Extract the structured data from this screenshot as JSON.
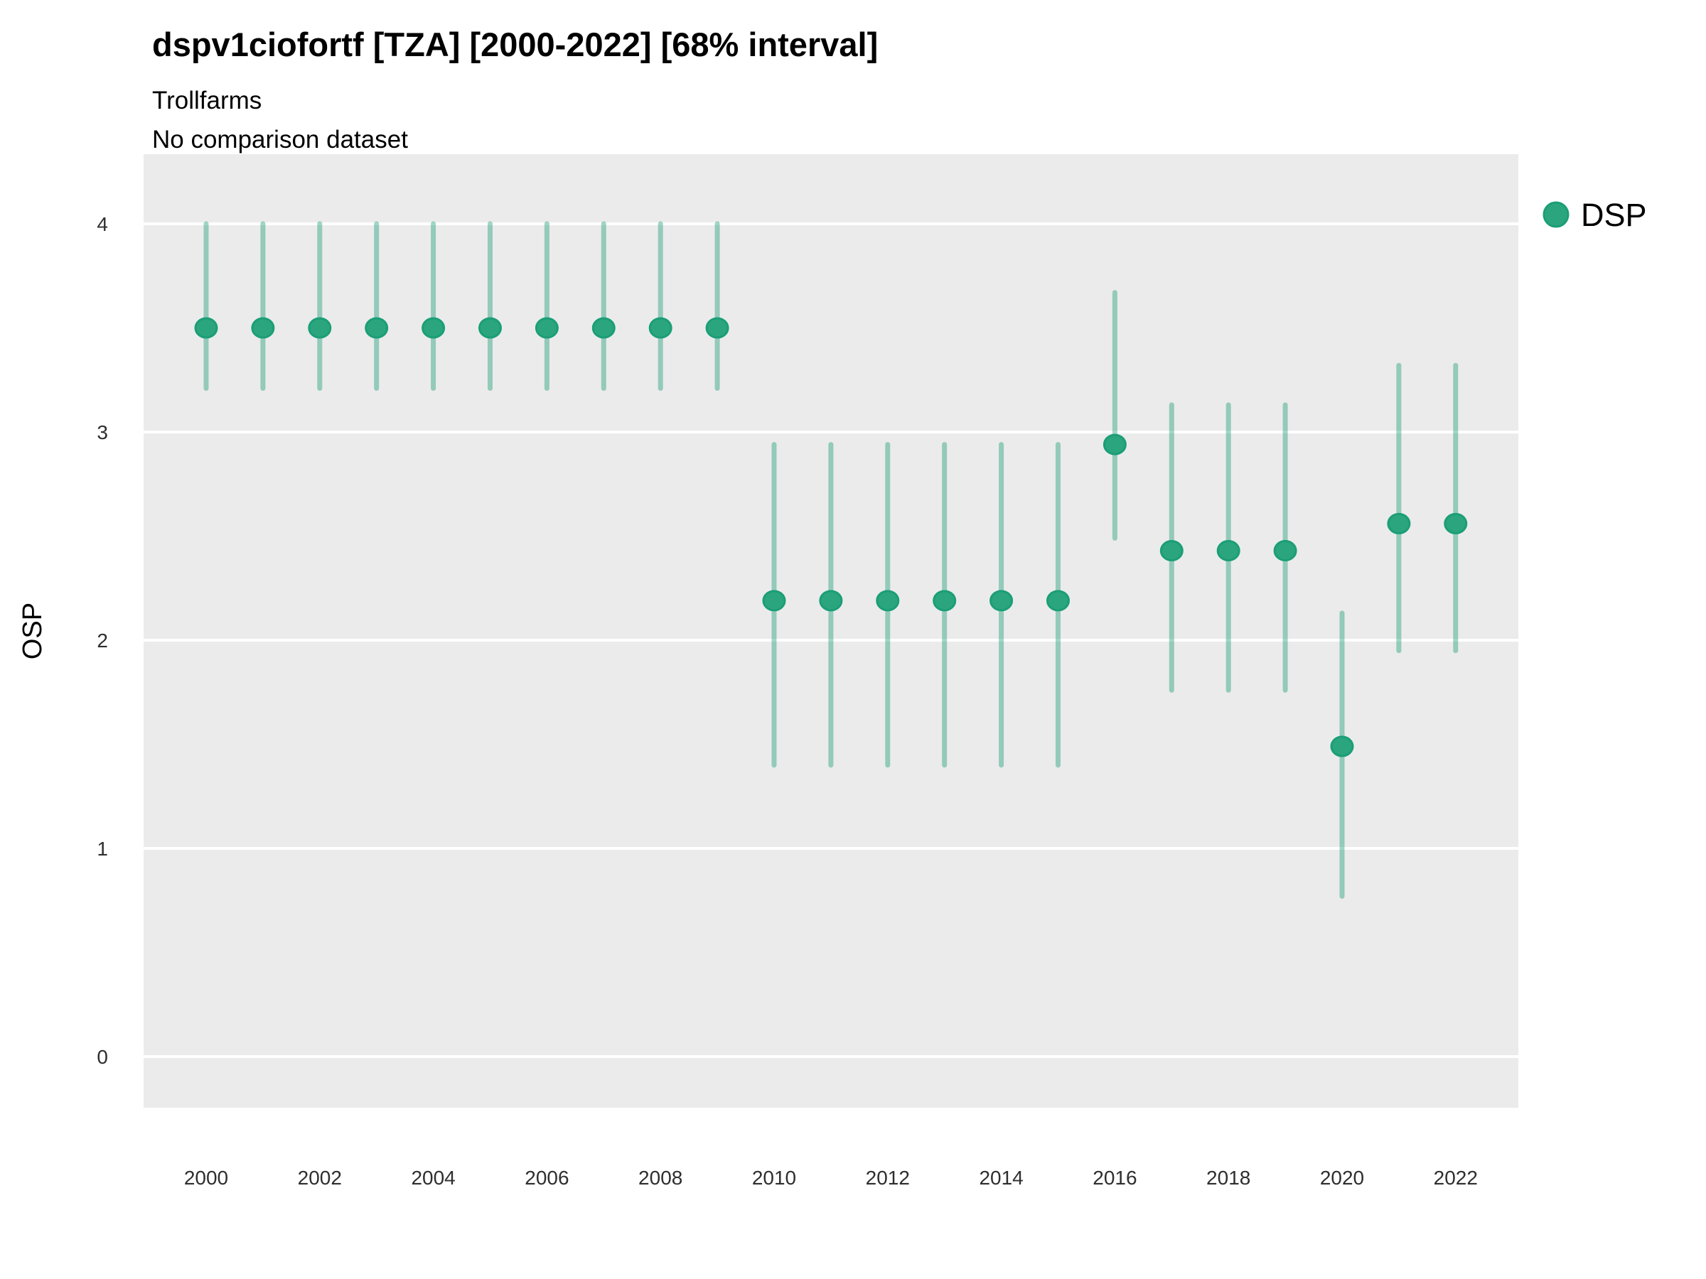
{
  "header": {
    "title": "dspv1ciofortf [TZA] [2000-2022] [68% interval]",
    "subtitle_line1": "Trollfarms",
    "subtitle_line2": "No comparison dataset"
  },
  "axes": {
    "y_label": "OSP",
    "y_ticks": [
      0,
      1,
      2,
      3,
      4
    ],
    "x_ticks": [
      2000,
      2002,
      2004,
      2006,
      2008,
      2010,
      2012,
      2014,
      2016,
      2018,
      2020,
      2022
    ]
  },
  "legend": {
    "items": [
      {
        "label": "DSP",
        "marker": "point-icon",
        "color": "#2ba57d"
      }
    ]
  },
  "chart_data": {
    "type": "scatter",
    "subtype": "pointrange",
    "title": "dspv1ciofortf [TZA] [2000-2022] [68% interval]",
    "subtitle": [
      "Trollfarms",
      "No comparison dataset"
    ],
    "interval_level": "68%",
    "xlabel": "",
    "ylabel": "OSP",
    "ylim": [
      -0.25,
      4.33
    ],
    "xlim_years": [
      2000,
      2022
    ],
    "grid": "horizontal-major-only",
    "legend_position": "right-top",
    "categories": [
      2000,
      2001,
      2002,
      2003,
      2004,
      2005,
      2006,
      2007,
      2008,
      2009,
      2010,
      2011,
      2012,
      2013,
      2014,
      2015,
      2016,
      2017,
      2018,
      2019,
      2020,
      2021,
      2022
    ],
    "series": [
      {
        "name": "DSP",
        "x": [
          2000,
          2001,
          2002,
          2003,
          2004,
          2005,
          2006,
          2007,
          2008,
          2009,
          2010,
          2011,
          2012,
          2013,
          2014,
          2015,
          2016,
          2017,
          2018,
          2019,
          2020,
          2021,
          2022
        ],
        "y": [
          3.5,
          3.5,
          3.5,
          3.5,
          3.5,
          3.5,
          3.5,
          3.5,
          3.5,
          3.5,
          2.19,
          2.19,
          2.19,
          2.19,
          2.19,
          2.19,
          2.94,
          2.43,
          2.43,
          2.43,
          1.49,
          2.56,
          2.56
        ],
        "y_lo": [
          3.21,
          3.21,
          3.21,
          3.21,
          3.21,
          3.21,
          3.21,
          3.21,
          3.21,
          3.21,
          1.4,
          1.4,
          1.4,
          1.4,
          1.4,
          1.4,
          2.49,
          1.76,
          1.76,
          1.76,
          0.77,
          1.95,
          1.95
        ],
        "y_hi": [
          4.0,
          4.0,
          4.0,
          4.0,
          4.0,
          4.0,
          4.0,
          4.0,
          4.0,
          4.0,
          2.94,
          2.94,
          2.94,
          2.94,
          2.94,
          2.94,
          3.67,
          3.13,
          3.13,
          3.13,
          2.13,
          3.32,
          3.32
        ]
      }
    ],
    "colors": {
      "point_fill": "#2ba57d",
      "point_stroke": "#1b9e77",
      "range_line": "#1b9e77",
      "range_opacity": 0.42,
      "panel_bg": "#ebebeb",
      "gridline": "#ffffff"
    }
  }
}
